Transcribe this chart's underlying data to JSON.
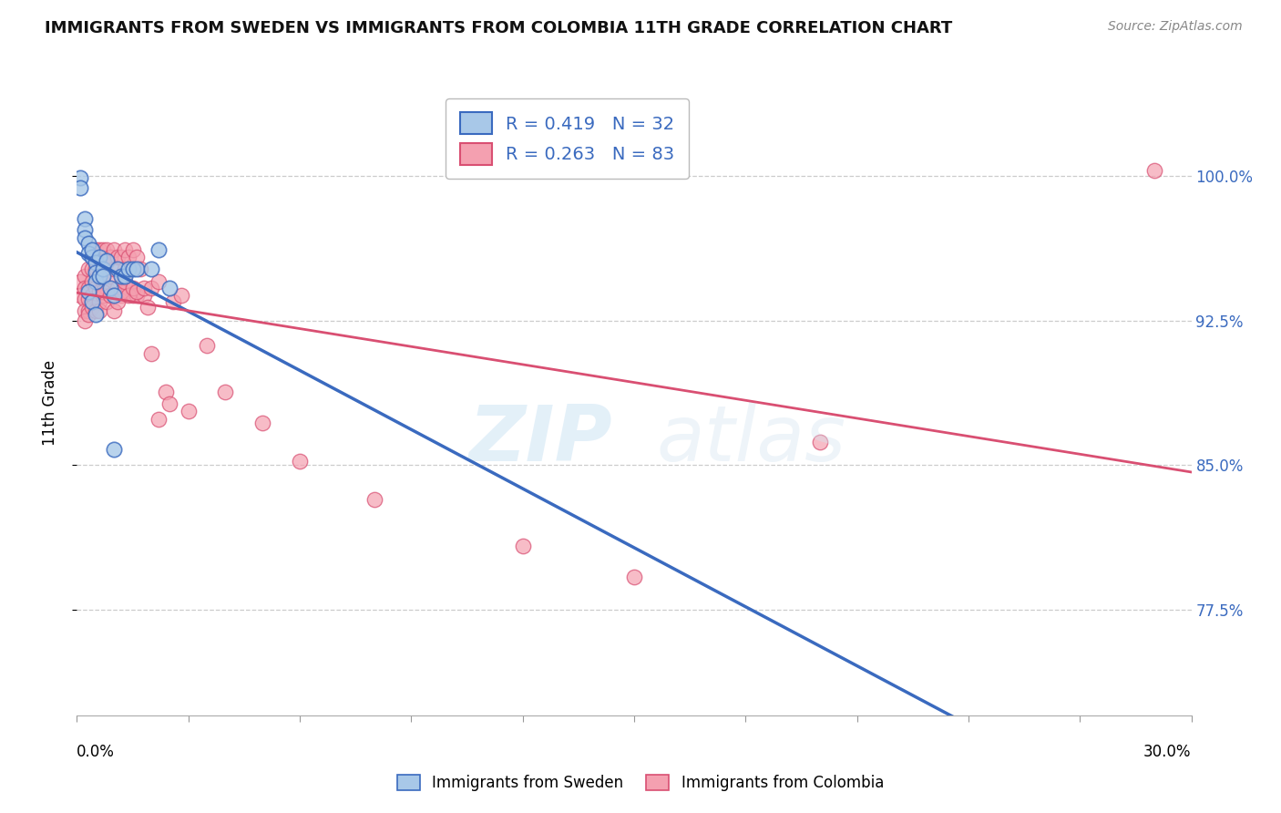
{
  "title": "IMMIGRANTS FROM SWEDEN VS IMMIGRANTS FROM COLOMBIA 11TH GRADE CORRELATION CHART",
  "source": "Source: ZipAtlas.com",
  "ylabel": "11th Grade",
  "yticks": [
    0.775,
    0.85,
    0.925,
    1.0
  ],
  "ytick_labels": [
    "77.5%",
    "85.0%",
    "92.5%",
    "100.0%"
  ],
  "xmin": 0.0,
  "xmax": 0.3,
  "ymin": 0.72,
  "ymax": 1.045,
  "sweden_R": 0.419,
  "sweden_N": 32,
  "colombia_R": 0.263,
  "colombia_N": 83,
  "sweden_color": "#a8c8e8",
  "colombia_color": "#f4a0b0",
  "sweden_line_color": "#3a6abf",
  "colombia_line_color": "#d94f72",
  "legend_label_sweden": "Immigrants from Sweden",
  "legend_label_colombia": "Immigrants from Colombia",
  "sweden_x": [
    0.001,
    0.001,
    0.002,
    0.002,
    0.002,
    0.003,
    0.003,
    0.004,
    0.004,
    0.005,
    0.005,
    0.005,
    0.006,
    0.006,
    0.007,
    0.007,
    0.008,
    0.009,
    0.01,
    0.01,
    0.011,
    0.012,
    0.013,
    0.014,
    0.015,
    0.016,
    0.02,
    0.022,
    0.025,
    0.003,
    0.004,
    0.005
  ],
  "sweden_y": [
    0.999,
    0.994,
    0.978,
    0.972,
    0.968,
    0.965,
    0.96,
    0.958,
    0.962,
    0.955,
    0.95,
    0.945,
    0.948,
    0.958,
    0.952,
    0.948,
    0.956,
    0.942,
    0.938,
    0.858,
    0.952,
    0.948,
    0.948,
    0.952,
    0.952,
    0.952,
    0.952,
    0.962,
    0.942,
    0.94,
    0.935,
    0.928
  ],
  "colombia_x": [
    0.001,
    0.001,
    0.002,
    0.002,
    0.002,
    0.002,
    0.003,
    0.003,
    0.003,
    0.003,
    0.004,
    0.004,
    0.004,
    0.004,
    0.005,
    0.005,
    0.005,
    0.006,
    0.006,
    0.006,
    0.006,
    0.007,
    0.007,
    0.007,
    0.008,
    0.008,
    0.008,
    0.009,
    0.009,
    0.01,
    0.01,
    0.011,
    0.011,
    0.012,
    0.012,
    0.013,
    0.013,
    0.013,
    0.014,
    0.014,
    0.015,
    0.015,
    0.016,
    0.016,
    0.017,
    0.018,
    0.019,
    0.02,
    0.022,
    0.024,
    0.025,
    0.03,
    0.04,
    0.05,
    0.06,
    0.08,
    0.12,
    0.15,
    0.2,
    0.29,
    0.002,
    0.003,
    0.004,
    0.005,
    0.006,
    0.007,
    0.006,
    0.007,
    0.008,
    0.009,
    0.01,
    0.011,
    0.012,
    0.013,
    0.014,
    0.015,
    0.016,
    0.018,
    0.02,
    0.022,
    0.026,
    0.028,
    0.035
  ],
  "colombia_y": [
    0.945,
    0.938,
    0.948,
    0.942,
    0.936,
    0.93,
    0.952,
    0.942,
    0.936,
    0.93,
    0.958,
    0.952,
    0.945,
    0.938,
    0.962,
    0.952,
    0.942,
    0.962,
    0.955,
    0.948,
    0.94,
    0.962,
    0.955,
    0.945,
    0.962,
    0.955,
    0.942,
    0.958,
    0.948,
    0.962,
    0.952,
    0.958,
    0.942,
    0.958,
    0.938,
    0.962,
    0.952,
    0.94,
    0.958,
    0.942,
    0.962,
    0.938,
    0.958,
    0.938,
    0.952,
    0.938,
    0.932,
    0.908,
    0.874,
    0.888,
    0.882,
    0.878,
    0.888,
    0.872,
    0.852,
    0.832,
    0.808,
    0.792,
    0.862,
    1.003,
    0.925,
    0.928,
    0.932,
    0.93,
    0.935,
    0.938,
    0.93,
    0.94,
    0.935,
    0.938,
    0.93,
    0.935,
    0.94,
    0.945,
    0.938,
    0.942,
    0.94,
    0.942,
    0.942,
    0.945,
    0.935,
    0.938,
    0.912
  ]
}
